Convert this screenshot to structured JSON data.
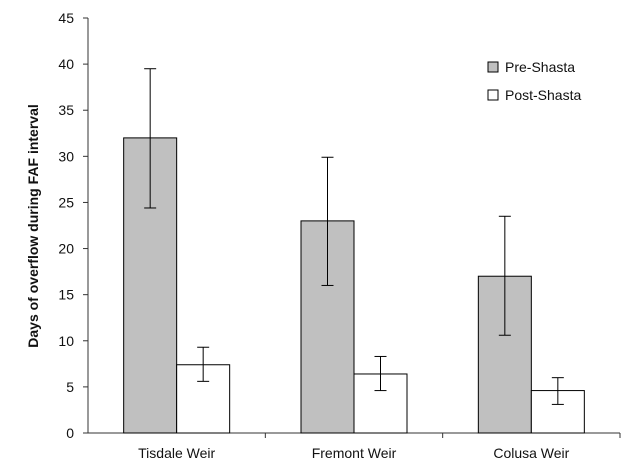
{
  "chart_data": {
    "type": "bar",
    "title": "",
    "xlabel": "",
    "ylabel": "Days of overflow during FAF interval",
    "ylim": [
      0,
      45
    ],
    "yticks": [
      0,
      5,
      10,
      15,
      20,
      25,
      30,
      35,
      40,
      45
    ],
    "categories": [
      "Tisdale Weir",
      "Fremont Weir",
      "Colusa Weir"
    ],
    "series": [
      {
        "name": "Pre-Shasta",
        "color": "#c0c0c0",
        "values": [
          32,
          23,
          17
        ],
        "error_low": [
          24.4,
          16.0,
          10.6
        ],
        "error_high": [
          39.5,
          29.9,
          23.5
        ]
      },
      {
        "name": "Post-Shasta",
        "color": "#ffffff",
        "values": [
          7.4,
          6.4,
          4.6
        ],
        "error_low": [
          5.6,
          4.6,
          3.1
        ],
        "error_high": [
          9.3,
          8.3,
          6.0
        ]
      }
    ],
    "grid": false,
    "legend_position": "top-right"
  }
}
